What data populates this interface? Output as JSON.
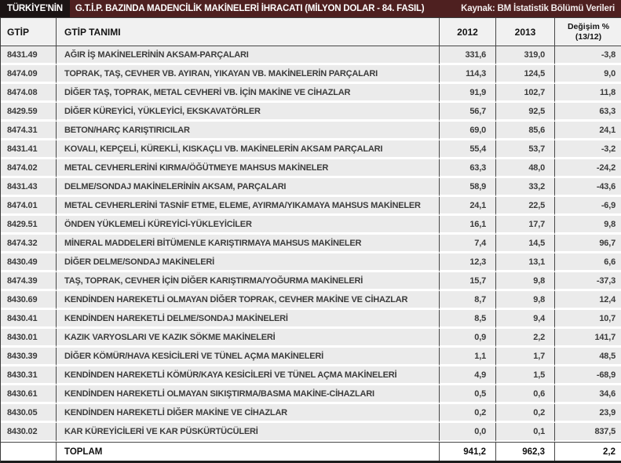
{
  "header": {
    "title_prefix": "TÜRKİYE'NİN",
    "title_rest": "G.T.İ.P. BAZINDA MADENCİLİK MAKİNELERİ İHRACATI (MİLYON DOLAR - 84. FASIL)",
    "source": "Kaynak: BM İstatistik Bölümü Verileri"
  },
  "columns": {
    "code": "GTİP",
    "name": "GTİP TANIMI",
    "y2012": "2012",
    "y2013": "2013",
    "change_line1": "Değişim %",
    "change_line2": "(13/12)"
  },
  "chart_data": {
    "type": "table",
    "title": "TÜRKİYE'NİN G.T.İ.P. BAZINDA MADENCİLİK MAKİNELERİ İHRACATI (MİLYON DOLAR - 84. FASIL)",
    "source": "Kaynak: BM İstatistik Bölümü Verileri",
    "columns": [
      "GTİP",
      "GTİP TANIMI",
      "2012",
      "2013",
      "Değişim % (13/12)"
    ],
    "unit": "MİLYON DOLAR",
    "rows": [
      {
        "code": "8431.49",
        "name": "AĞIR İŞ MAKİNELERİNİN AKSAM-PARÇALARI",
        "v2012": "331,6",
        "v2013": "319,0",
        "change": "-3,8"
      },
      {
        "code": "8474.09",
        "name": "TOPRAK, TAŞ, CEVHER VB. AYIRAN, YIKAYAN VB. MAKİNELERİN PARÇALARI",
        "v2012": "114,3",
        "v2013": "124,5",
        "change": "9,0"
      },
      {
        "code": "8474.08",
        "name": "DİĞER TAŞ, TOPRAK, METAL CEVHERİ VB. İÇİN MAKİNE VE CİHAZLAR",
        "v2012": "91,9",
        "v2013": "102,7",
        "change": "11,8"
      },
      {
        "code": "8429.59",
        "name": "DİĞER KÜREYİCİ, YÜKLEYİCİ, EKSKAVATÖRLER",
        "v2012": "56,7",
        "v2013": "92,5",
        "change": "63,3"
      },
      {
        "code": "8474.31",
        "name": "BETON/HARÇ KARIŞTIRICILAR",
        "v2012": "69,0",
        "v2013": "85,6",
        "change": "24,1"
      },
      {
        "code": "8431.41",
        "name": "KOVALI, KEPÇELİ, KÜREKLİ, KISKAÇLI VB. MAKİNELERİN AKSAM PARÇALARI",
        "v2012": "55,4",
        "v2013": "53,7",
        "change": "-3,2"
      },
      {
        "code": "8474.02",
        "name": "METAL CEVHERLERİNİ KIRMA/ÖĞÜTMEYE MAHSUS MAKİNELER",
        "v2012": "63,3",
        "v2013": "48,0",
        "change": "-24,2"
      },
      {
        "code": "8431.43",
        "name": "DELME/SONDAJ MAKİNELERİNİN AKSAM, PARÇALARI",
        "v2012": "58,9",
        "v2013": "33,2",
        "change": "-43,6"
      },
      {
        "code": "8474.01",
        "name": "METAL CEVHERLERİNİ TASNİF ETME, ELEME, AYIRMA/YIKAMAYA MAHSUS MAKİNELER",
        "v2012": "24,1",
        "v2013": "22,5",
        "change": "-6,9"
      },
      {
        "code": "8429.51",
        "name": "ÖNDEN YÜKLEMELİ KÜREYİCİ-YÜKLEYİCİLER",
        "v2012": "16,1",
        "v2013": "17,7",
        "change": "9,8"
      },
      {
        "code": "8474.32",
        "name": "MİNERAL MADDELERİ BİTÜMENLE KARIŞTIRMAYA MAHSUS MAKİNELER",
        "v2012": "7,4",
        "v2013": "14,5",
        "change": "96,7"
      },
      {
        "code": "8430.49",
        "name": "DİĞER DELME/SONDAJ MAKİNELERİ",
        "v2012": "12,3",
        "v2013": "13,1",
        "change": "6,6"
      },
      {
        "code": "8474.39",
        "name": "TAŞ, TOPRAK, CEVHER İÇİN DİĞER KARIŞTIRMA/YOĞURMA MAKİNELERİ",
        "v2012": "15,7",
        "v2013": "9,8",
        "change": "-37,3"
      },
      {
        "code": "8430.69",
        "name": "KENDİNDEN HAREKETLİ OLMAYAN DİĞER TOPRAK, CEVHER MAKİNE VE CİHAZLAR",
        "v2012": "8,7",
        "v2013": "9,8",
        "change": "12,4"
      },
      {
        "code": "8430.41",
        "name": "KENDİNDEN HAREKETLİ DELME/SONDAJ MAKİNELERİ",
        "v2012": "8,5",
        "v2013": "9,4",
        "change": "10,7"
      },
      {
        "code": "8430.01",
        "name": "KAZIK VARYOSLARI VE KAZIK SÖKME MAKİNELERİ",
        "v2012": "0,9",
        "v2013": "2,2",
        "change": "141,7"
      },
      {
        "code": "8430.39",
        "name": "DİĞER KÖMÜR/HAVA KESİCİLERİ VE TÜNEL AÇMA MAKİNELERİ",
        "v2012": "1,1",
        "v2013": "1,7",
        "change": "48,5"
      },
      {
        "code": "8430.31",
        "name": "KENDİNDEN HAREKETLİ KÖMÜR/KAYA KESİCİLERİ VE TÜNEL AÇMA MAKİNELERİ",
        "v2012": "4,9",
        "v2013": "1,5",
        "change": "-68,9"
      },
      {
        "code": "8430.61",
        "name": "KENDİNDEN HAREKETLİ OLMAYAN SIKIŞTIRMA/BASMA MAKİNE-CİHAZLARI",
        "v2012": "0,5",
        "v2013": "0,6",
        "change": "34,6"
      },
      {
        "code": "8430.05",
        "name": "KENDİNDEN HAREKETLİ DİĞER MAKİNE VE CİHAZLAR",
        "v2012": "0,2",
        "v2013": "0,2",
        "change": "23,9"
      },
      {
        "code": "8430.02",
        "name": "KAR KÜREYİCİLERİ VE KAR PÜSKÜRTÜCÜLERİ",
        "v2012": "0,0",
        "v2013": "0,1",
        "change": "837,5"
      }
    ],
    "total": {
      "label": "TOPLAM",
      "v2012": "941,2",
      "v2013": "962,3",
      "change": "2,2"
    }
  },
  "colors": {
    "title_bar_maroon": "#4e2020",
    "title_prefix_black": "#1b1414",
    "header_row_bg": "#f1f1f1",
    "row_bg": "#ebebeb",
    "border_dark": "#474747"
  }
}
